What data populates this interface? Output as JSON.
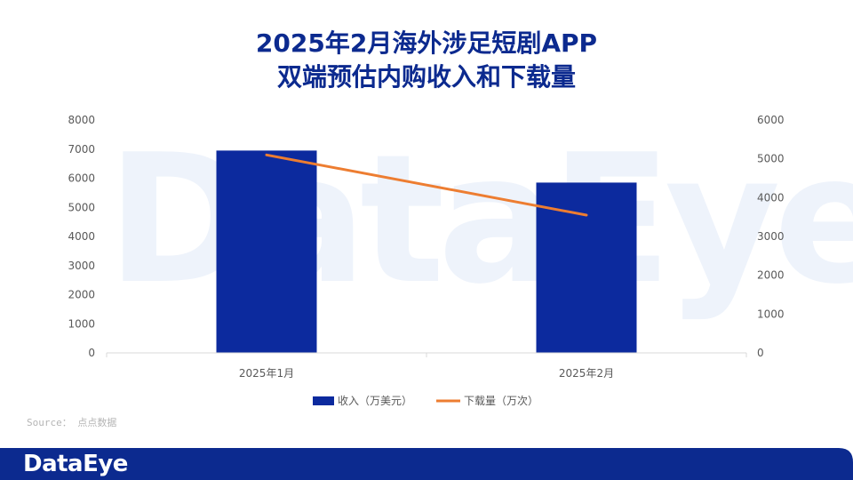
{
  "header": {
    "title_line1": "2025年2月海外涉足短剧APP",
    "title_line2": "双端预估内购收入和下载量"
  },
  "watermark": "DataEye",
  "source": "Source： 点点数据",
  "footer": {
    "logo": "DataEye"
  },
  "colors": {
    "bar": "#0c2a9e",
    "line": "#ed7d31",
    "title": "#0c2a8f",
    "footer": "#0c2a8f"
  },
  "chart_data": {
    "type": "bar+line",
    "categories": [
      "2025年1月",
      "2025年2月"
    ],
    "series": [
      {
        "name": "收入（万美元）",
        "type": "bar",
        "axis": "left",
        "values": [
          6950,
          5850
        ]
      },
      {
        "name": "下载量（万次）",
        "type": "line",
        "axis": "right",
        "values": [
          5100,
          3550
        ]
      }
    ],
    "y_left": {
      "range": [
        0,
        8000
      ],
      "ticks": [
        "0",
        "1000",
        "2000",
        "3000",
        "4000",
        "5000",
        "6000",
        "7000",
        "8000"
      ]
    },
    "y_right": {
      "range": [
        0,
        6000
      ],
      "ticks": [
        "0",
        "1000",
        "2000",
        "3000",
        "4000",
        "5000",
        "6000"
      ]
    },
    "grid": false,
    "legend_position": "bottom"
  }
}
